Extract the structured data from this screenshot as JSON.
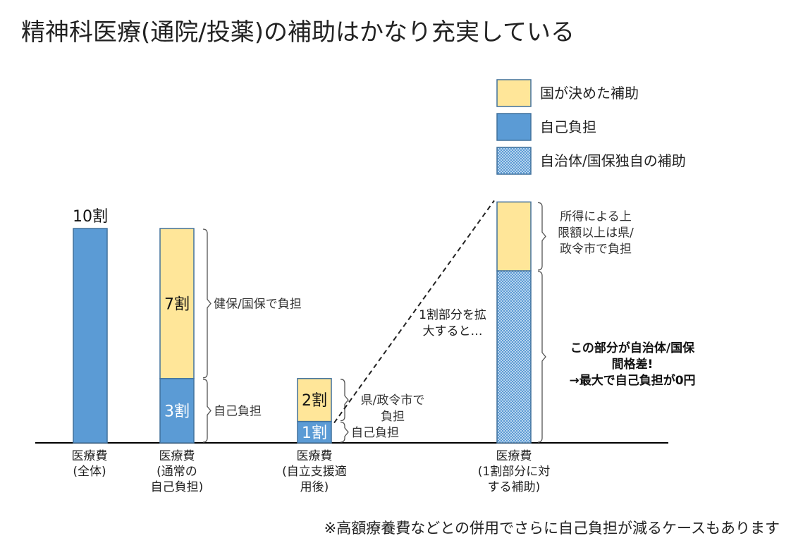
{
  "title": "精神科医療(通院/投薬)の補助はかなり充実している",
  "footnote": "※高額療養費などとの併用でさらに自己負担が減るケースもあります",
  "legend": [
    {
      "label": "国が決めた補助",
      "style": "subsidy"
    },
    {
      "label": "自己負担",
      "style": "self"
    },
    {
      "label": "自治体/国保独自の補助",
      "style": "local"
    }
  ],
  "colors": {
    "subsidy": "#FFE699",
    "self": "#5B9BD5",
    "local": "#5B9BD5",
    "border": "#41719C",
    "axis": "#000000"
  },
  "chart_data": {
    "type": "bar",
    "stacked": true,
    "unit": "割",
    "ylim": [
      0,
      10
    ],
    "categories": [
      "医療費\n(全体)",
      "医療費\n(通常の\n自己負担)",
      "医療費\n(自立支援適\n用後)",
      "医療費\n(1割部分に対\nする補助)"
    ],
    "bars": [
      {
        "segments": [
          {
            "series": "自己負担",
            "value": 10,
            "style": "self",
            "label": ""
          }
        ],
        "top_label": "10割"
      },
      {
        "segments": [
          {
            "series": "自己負担",
            "value": 3,
            "style": "self",
            "label": "3割"
          },
          {
            "series": "国が決めた補助",
            "value": 7,
            "style": "subsidy",
            "label": "7割"
          }
        ]
      },
      {
        "segments": [
          {
            "series": "自己負担",
            "value": 1,
            "style": "self",
            "label": "1割"
          },
          {
            "series": "国が決めた補助",
            "value": 2,
            "style": "subsidy",
            "label": "2割"
          }
        ]
      },
      {
        "scale": "magnified",
        "segments": [
          {
            "series": "自治体/国保独自の補助",
            "value": 2,
            "style": "local",
            "label": ""
          },
          {
            "series": "国が決めた補助",
            "value": 0.8,
            "style": "subsidy",
            "label": ""
          }
        ]
      }
    ],
    "annotations": [
      {
        "text": "健保/国保で負担",
        "bold": false
      },
      {
        "text": "自己負担",
        "bold": false
      },
      {
        "text": "県/政令市で\n負担",
        "bold": false
      },
      {
        "text": "自己負担",
        "bold": false
      },
      {
        "text": "所得による上\n限額以上は県/\n政令市で負担",
        "bold": false
      },
      {
        "text": "この部分が自治体/国保\n間格差!\n→最大で自己負担が0円",
        "bold": true
      }
    ],
    "zoom_note": "1割部分を拡\n大すると…"
  }
}
